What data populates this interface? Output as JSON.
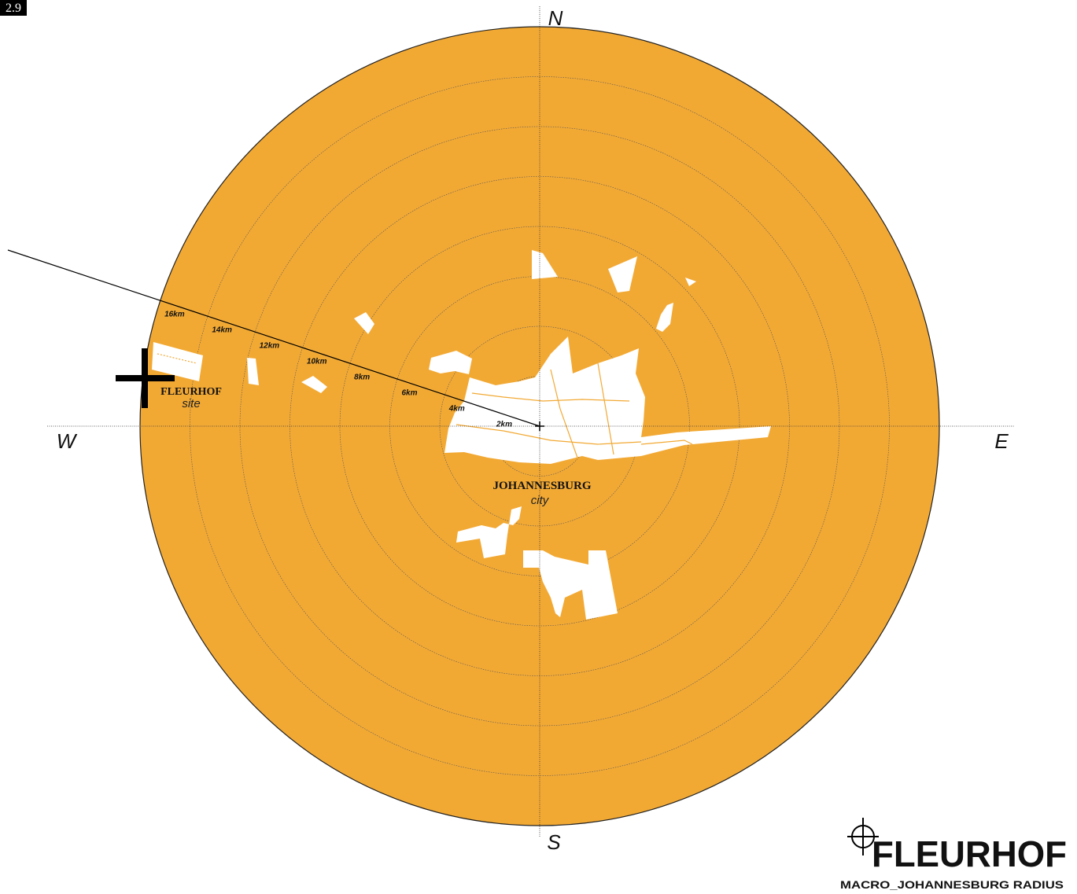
{
  "figure": "2.9",
  "compass": {
    "north": "N",
    "east": "E",
    "south": "S",
    "west": "W"
  },
  "rings": [
    "2km",
    "4km",
    "6km",
    "8km",
    "10km",
    "12km",
    "14km",
    "16km"
  ],
  "site": {
    "name": "FLEURHOF",
    "kind": "site"
  },
  "city": {
    "name": "JOHANNESBURG",
    "kind": "city"
  },
  "footer": {
    "title": "FLEURHOF",
    "subtitle": "MACRO_JOHANNESBURG RADIUS"
  }
}
